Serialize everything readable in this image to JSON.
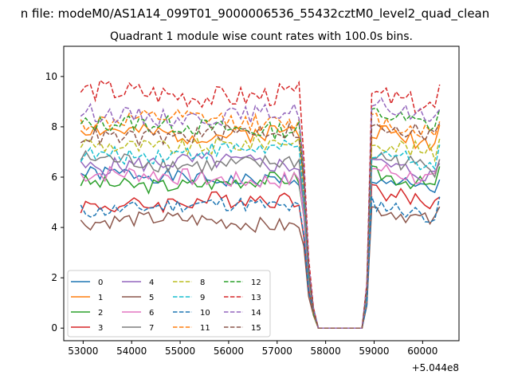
{
  "chart_data": {
    "type": "line",
    "title": "n file: modeM0/AS1A14_099T01_9000006536_55432cztM0_level2_quad_clean",
    "subtitle": "Quadrant 1 module wise count rates with 100.0s bins.",
    "xlabel": "",
    "ylabel": "",
    "offset_label": "+5.044e8",
    "x_offset": 504400000,
    "xlim": [
      52600,
      60750
    ],
    "ylim": [
      -0.5,
      11.2
    ],
    "x_ticks": [
      53000,
      54000,
      55000,
      56000,
      57000,
      58000,
      59000,
      60000
    ],
    "x_tick_labels": [
      "53000",
      "54000",
      "55000",
      "56000",
      "57000",
      "58000",
      "59000",
      "60000"
    ],
    "y_ticks": [
      0,
      2,
      4,
      6,
      8,
      10
    ],
    "y_tick_labels": [
      "0",
      "2",
      "4",
      "6",
      "8",
      "10"
    ],
    "grid": false,
    "legend_placement": "lower-left",
    "legend_columns": 4,
    "x_start": 52950,
    "x_step": 100,
    "series": [
      {
        "name": "0",
        "color": "#1f77b4",
        "dash": "solid",
        "level": 6.0,
        "post_level": 5.7,
        "amp": 0.3,
        "seed": 1
      },
      {
        "name": "1",
        "color": "#ff7f0e",
        "dash": "solid",
        "level": 7.8,
        "post_level": 7.6,
        "amp": 0.35,
        "seed": 2
      },
      {
        "name": "2",
        "color": "#2ca02c",
        "dash": "solid",
        "level": 5.8,
        "post_level": 5.9,
        "amp": 0.3,
        "seed": 3
      },
      {
        "name": "3",
        "color": "#d62728",
        "dash": "solid",
        "level": 5.0,
        "post_level": 5.2,
        "amp": 0.35,
        "seed": 4
      },
      {
        "name": "4",
        "color": "#9467bd",
        "dash": "solid",
        "level": 6.5,
        "post_level": 6.3,
        "amp": 0.35,
        "seed": 5
      },
      {
        "name": "5",
        "color": "#8c564b",
        "dash": "solid",
        "level": 4.2,
        "post_level": 4.5,
        "amp": 0.3,
        "seed": 6
      },
      {
        "name": "6",
        "color": "#e377c2",
        "dash": "solid",
        "level": 6.0,
        "post_level": 6.1,
        "amp": 0.35,
        "seed": 7
      },
      {
        "name": "7",
        "color": "#7f7f7f",
        "dash": "solid",
        "level": 6.6,
        "post_level": 6.6,
        "amp": 0.35,
        "seed": 8
      },
      {
        "name": "8",
        "color": "#bcbd22",
        "dash": "dashed",
        "level": 7.3,
        "post_level": 7.2,
        "amp": 0.35,
        "seed": 9
      },
      {
        "name": "9",
        "color": "#17becf",
        "dash": "dashed",
        "level": 7.0,
        "post_level": 6.8,
        "amp": 0.35,
        "seed": 10
      },
      {
        "name": "10",
        "color": "#1f77b4",
        "dash": "dashed",
        "level": 4.8,
        "post_level": 4.7,
        "amp": 0.3,
        "seed": 11
      },
      {
        "name": "11",
        "color": "#ff7f0e",
        "dash": "dashed",
        "level": 8.2,
        "post_level": 8.0,
        "amp": 0.35,
        "seed": 12
      },
      {
        "name": "12",
        "color": "#2ca02c",
        "dash": "dashed",
        "level": 8.0,
        "post_level": 8.3,
        "amp": 0.35,
        "seed": 13
      },
      {
        "name": "13",
        "color": "#d62728",
        "dash": "dashed",
        "level": 9.3,
        "post_level": 9.0,
        "amp": 0.45,
        "seed": 14
      },
      {
        "name": "14",
        "color": "#9467bd",
        "dash": "dashed",
        "level": 8.5,
        "post_level": 8.6,
        "amp": 0.35,
        "seed": 15
      },
      {
        "name": "15",
        "color": "#8c564b",
        "dash": "dashed",
        "level": 7.7,
        "post_level": 7.9,
        "amp": 0.35,
        "seed": 16
      }
    ]
  }
}
